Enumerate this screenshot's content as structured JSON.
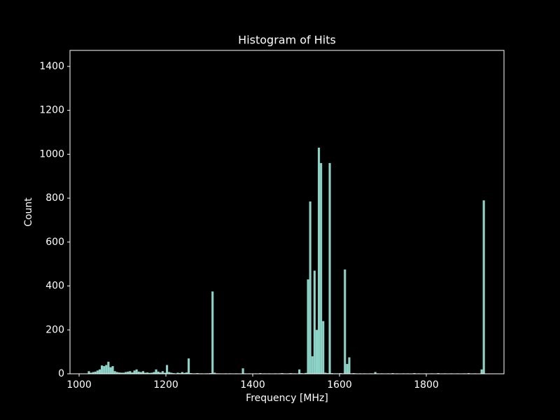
{
  "chart_data": {
    "type": "histogram",
    "title": "Histogram of Hits",
    "x_label": "Frequency [MHz]",
    "y_label": "Count",
    "color": "#8dd3c7",
    "bins": [
      1000,
      1005,
      1010,
      1015,
      1020,
      1025,
      1030,
      1035,
      1040,
      1045,
      1050,
      1055,
      1060,
      1065,
      1070,
      1075,
      1080,
      1085,
      1090,
      1095,
      1100,
      1105,
      1110,
      1115,
      1120,
      1125,
      1130,
      1135,
      1140,
      1145,
      1150,
      1155,
      1160,
      1165,
      1170,
      1175,
      1180,
      1185,
      1190,
      1195,
      1200,
      1205,
      1210,
      1215,
      1220,
      1225,
      1230,
      1235,
      1240,
      1245,
      1250,
      1255,
      1260,
      1265,
      1270,
      1275,
      1280,
      1285,
      1290,
      1295,
      1300,
      1305,
      1310,
      1315,
      1320,
      1325,
      1330,
      1335,
      1340,
      1345,
      1350,
      1355,
      1360,
      1365,
      1370,
      1375,
      1380,
      1385,
      1390,
      1395,
      1400,
      1405,
      1410,
      1415,
      1420,
      1425,
      1430,
      1435,
      1440,
      1445,
      1450,
      1455,
      1460,
      1465,
      1470,
      1475,
      1480,
      1485,
      1490,
      1495,
      1500,
      1505,
      1510,
      1515,
      1520,
      1525,
      1530,
      1535,
      1540,
      1545,
      1550,
      1555,
      1560,
      1565,
      1570,
      1575,
      1580,
      1585,
      1590,
      1595,
      1600,
      1605,
      1610,
      1615,
      1620,
      1625,
      1630,
      1635,
      1640,
      1645,
      1650,
      1655,
      1660,
      1665,
      1670,
      1675,
      1680,
      1685,
      1690,
      1695,
      1700,
      1705,
      1710,
      1715,
      1720,
      1725,
      1730,
      1735,
      1740,
      1745,
      1750,
      1755,
      1760,
      1765,
      1770,
      1775,
      1780,
      1785,
      1790,
      1795,
      1800,
      1805,
      1810,
      1815,
      1820,
      1825,
      1830,
      1835,
      1840,
      1845,
      1850,
      1855,
      1860,
      1865,
      1870,
      1875,
      1880,
      1885,
      1890,
      1895,
      1900,
      1905,
      1910,
      1915,
      1920,
      1925,
      1930,
      1935
    ],
    "counts": [
      0,
      0,
      0,
      0,
      12,
      5,
      8,
      10,
      15,
      20,
      38,
      35,
      40,
      55,
      30,
      35,
      12,
      8,
      6,
      5,
      5,
      8,
      10,
      12,
      6,
      15,
      20,
      10,
      8,
      12,
      5,
      6,
      4,
      5,
      8,
      20,
      10,
      6,
      12,
      5,
      40,
      8,
      5,
      3,
      2,
      5,
      3,
      8,
      4,
      6,
      70,
      3,
      2,
      2,
      3,
      2,
      2,
      1,
      2,
      2,
      3,
      375,
      5,
      2,
      2,
      1,
      1,
      2,
      1,
      2,
      1,
      1,
      2,
      1,
      1,
      25,
      2,
      1,
      2,
      1,
      1,
      2,
      1,
      3,
      1,
      2,
      1,
      2,
      1,
      1,
      2,
      1,
      2,
      3,
      2,
      1,
      2,
      3,
      2,
      2,
      1,
      20,
      3,
      2,
      4,
      430,
      785,
      80,
      470,
      200,
      1030,
      960,
      240,
      5,
      3,
      960,
      3,
      2,
      2,
      2,
      3,
      2,
      475,
      45,
      75,
      2,
      3,
      2,
      1,
      2,
      1,
      2,
      1,
      1,
      2,
      1,
      8,
      2,
      1,
      2,
      1,
      1,
      2,
      1,
      3,
      1,
      2,
      1,
      1,
      2,
      1,
      2,
      1,
      1,
      3,
      1,
      2,
      1,
      1,
      2,
      1,
      1,
      2,
      1,
      1,
      3,
      1,
      1,
      2,
      1,
      1,
      2,
      1,
      1,
      2,
      1,
      1,
      2,
      1,
      3,
      1,
      1,
      2,
      1,
      1,
      20,
      790
    ],
    "xlim": [
      979,
      1979
    ],
    "ylim": [
      0,
      1473
    ],
    "xticks": [
      1000,
      1200,
      1400,
      1600,
      1800
    ],
    "yticks": [
      0,
      200,
      400,
      600,
      800,
      1000,
      1200,
      1400
    ]
  }
}
